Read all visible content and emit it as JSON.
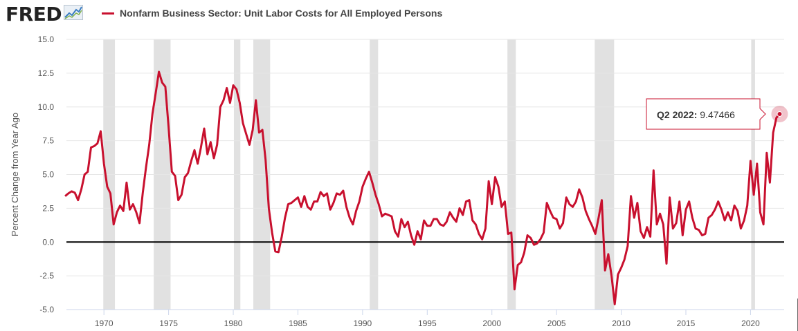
{
  "logo": {
    "text": "FRED",
    "icon": "trend-chart-icon"
  },
  "colors": {
    "series": "#c8102e",
    "recession": "#e1e1e1",
    "zero_line": "#000000",
    "grid": "#e6e6e6",
    "text": "#555555"
  },
  "chart_data": {
    "type": "line",
    "title": "",
    "xlabel": "",
    "ylabel": "Percent Change from Year Ago",
    "xlim": [
      1967.1,
      2022.6
    ],
    "ylim": [
      -5.0,
      15.0
    ],
    "yticks": [
      -5.0,
      -2.5,
      0.0,
      2.5,
      5.0,
      7.5,
      10.0,
      12.5,
      15.0
    ],
    "ytick_labels": [
      "-5.0",
      "-2.5",
      "0.0",
      "2.5",
      "5.0",
      "7.5",
      "10.0",
      "12.5",
      "15.0"
    ],
    "xticks": [
      1970,
      1975,
      1980,
      1985,
      1990,
      1995,
      2000,
      2005,
      2010,
      2015,
      2020
    ],
    "xtick_labels": [
      "1970",
      "1975",
      "1980",
      "1985",
      "1990",
      "1995",
      "2000",
      "2005",
      "2010",
      "2015",
      "2020"
    ],
    "grid": "horizontal",
    "zero_line": true,
    "recessions": [
      [
        1969.95,
        1970.85
      ],
      [
        1973.85,
        1975.15
      ],
      [
        1980.05,
        1980.55
      ],
      [
        1981.55,
        1982.85
      ],
      [
        1990.55,
        1991.2
      ],
      [
        2001.2,
        2001.85
      ],
      [
        2007.95,
        2009.45
      ],
      [
        2020.05,
        2020.35
      ]
    ],
    "series": [
      {
        "name": "Nonfarm Business Sector: Unit Labor Costs for All Employed Persons",
        "points": [
          [
            1967.0,
            3.4
          ],
          [
            1967.25,
            3.6
          ],
          [
            1967.5,
            3.75
          ],
          [
            1967.75,
            3.65
          ],
          [
            1968.0,
            3.1
          ],
          [
            1968.25,
            3.9
          ],
          [
            1968.5,
            5.0
          ],
          [
            1968.75,
            5.2
          ],
          [
            1969.0,
            7.0
          ],
          [
            1969.25,
            7.1
          ],
          [
            1969.5,
            7.3
          ],
          [
            1969.75,
            8.2
          ],
          [
            1970.0,
            5.8
          ],
          [
            1970.25,
            4.1
          ],
          [
            1970.5,
            3.6
          ],
          [
            1970.75,
            1.3
          ],
          [
            1971.0,
            2.2
          ],
          [
            1971.25,
            2.7
          ],
          [
            1971.5,
            2.3
          ],
          [
            1971.75,
            4.4
          ],
          [
            1972.0,
            2.4
          ],
          [
            1972.25,
            2.8
          ],
          [
            1972.5,
            2.2
          ],
          [
            1972.75,
            1.4
          ],
          [
            1973.0,
            3.6
          ],
          [
            1973.25,
            5.5
          ],
          [
            1973.5,
            7.2
          ],
          [
            1973.75,
            9.5
          ],
          [
            1974.0,
            11.0
          ],
          [
            1974.25,
            12.6
          ],
          [
            1974.5,
            11.8
          ],
          [
            1974.75,
            11.5
          ],
          [
            1975.0,
            8.5
          ],
          [
            1975.25,
            5.2
          ],
          [
            1975.5,
            4.9
          ],
          [
            1975.75,
            3.1
          ],
          [
            1976.0,
            3.5
          ],
          [
            1976.25,
            4.8
          ],
          [
            1976.5,
            5.1
          ],
          [
            1976.75,
            6.0
          ],
          [
            1977.0,
            6.8
          ],
          [
            1977.25,
            5.8
          ],
          [
            1977.5,
            7.0
          ],
          [
            1977.75,
            8.4
          ],
          [
            1978.0,
            6.5
          ],
          [
            1978.25,
            7.4
          ],
          [
            1978.5,
            6.2
          ],
          [
            1978.75,
            7.2
          ],
          [
            1979.0,
            10.0
          ],
          [
            1979.25,
            10.5
          ],
          [
            1979.5,
            11.4
          ],
          [
            1979.75,
            10.3
          ],
          [
            1980.0,
            11.6
          ],
          [
            1980.25,
            11.3
          ],
          [
            1980.5,
            10.3
          ],
          [
            1980.75,
            8.8
          ],
          [
            1981.0,
            8.0
          ],
          [
            1981.25,
            7.2
          ],
          [
            1981.5,
            8.3
          ],
          [
            1981.75,
            10.5
          ],
          [
            1982.0,
            8.1
          ],
          [
            1982.25,
            8.3
          ],
          [
            1982.5,
            6.1
          ],
          [
            1982.75,
            2.5
          ],
          [
            1983.0,
            0.7
          ],
          [
            1983.25,
            -0.7
          ],
          [
            1983.5,
            -0.75
          ],
          [
            1983.75,
            0.4
          ],
          [
            1984.0,
            1.8
          ],
          [
            1984.25,
            2.8
          ],
          [
            1984.5,
            2.9
          ],
          [
            1984.75,
            3.1
          ],
          [
            1985.0,
            3.3
          ],
          [
            1985.25,
            2.6
          ],
          [
            1985.5,
            3.4
          ],
          [
            1985.75,
            2.6
          ],
          [
            1986.0,
            2.4
          ],
          [
            1986.25,
            3.0
          ],
          [
            1986.5,
            3.0
          ],
          [
            1986.75,
            3.7
          ],
          [
            1987.0,
            3.4
          ],
          [
            1987.25,
            3.6
          ],
          [
            1987.5,
            2.4
          ],
          [
            1987.75,
            2.9
          ],
          [
            1988.0,
            3.6
          ],
          [
            1988.25,
            3.5
          ],
          [
            1988.5,
            3.8
          ],
          [
            1988.75,
            2.6
          ],
          [
            1989.0,
            1.8
          ],
          [
            1989.25,
            1.3
          ],
          [
            1989.5,
            2.3
          ],
          [
            1989.75,
            3.0
          ],
          [
            1990.0,
            4.1
          ],
          [
            1990.25,
            4.7
          ],
          [
            1990.5,
            5.2
          ],
          [
            1990.75,
            4.4
          ],
          [
            1991.0,
            3.5
          ],
          [
            1991.25,
            2.8
          ],
          [
            1991.5,
            1.9
          ],
          [
            1991.75,
            2.1
          ],
          [
            1992.0,
            2.0
          ],
          [
            1992.25,
            1.9
          ],
          [
            1992.5,
            0.8
          ],
          [
            1992.75,
            0.4
          ],
          [
            1993.0,
            1.7
          ],
          [
            1993.25,
            1.1
          ],
          [
            1993.5,
            1.5
          ],
          [
            1993.75,
            0.5
          ],
          [
            1994.0,
            -0.2
          ],
          [
            1994.25,
            0.8
          ],
          [
            1994.5,
            0.2
          ],
          [
            1994.75,
            1.6
          ],
          [
            1995.0,
            1.2
          ],
          [
            1995.25,
            1.2
          ],
          [
            1995.5,
            1.7
          ],
          [
            1995.75,
            1.7
          ],
          [
            1996.0,
            1.3
          ],
          [
            1996.25,
            1.2
          ],
          [
            1996.5,
            1.5
          ],
          [
            1996.75,
            2.2
          ],
          [
            1997.0,
            1.8
          ],
          [
            1997.25,
            1.5
          ],
          [
            1997.5,
            2.5
          ],
          [
            1997.75,
            2.0
          ],
          [
            1998.0,
            3.0
          ],
          [
            1998.25,
            3.1
          ],
          [
            1998.5,
            1.6
          ],
          [
            1998.75,
            1.3
          ],
          [
            1999.0,
            0.6
          ],
          [
            1999.25,
            0.2
          ],
          [
            1999.5,
            1.0
          ],
          [
            1999.75,
            4.5
          ],
          [
            2000.0,
            2.8
          ],
          [
            2000.25,
            4.8
          ],
          [
            2000.5,
            4.1
          ],
          [
            2000.75,
            2.6
          ],
          [
            2001.0,
            3.0
          ],
          [
            2001.25,
            0.6
          ],
          [
            2001.5,
            0.7
          ],
          [
            2001.75,
            -3.5
          ],
          [
            2002.0,
            -1.7
          ],
          [
            2002.25,
            -1.5
          ],
          [
            2002.5,
            -0.8
          ],
          [
            2002.75,
            0.5
          ],
          [
            2003.0,
            0.3
          ],
          [
            2003.25,
            -0.2
          ],
          [
            2003.5,
            -0.1
          ],
          [
            2003.75,
            0.2
          ],
          [
            2004.0,
            0.7
          ],
          [
            2004.25,
            2.9
          ],
          [
            2004.5,
            2.3
          ],
          [
            2004.75,
            1.8
          ],
          [
            2005.0,
            1.7
          ],
          [
            2005.25,
            1.0
          ],
          [
            2005.5,
            1.4
          ],
          [
            2005.75,
            3.3
          ],
          [
            2006.0,
            2.8
          ],
          [
            2006.25,
            2.6
          ],
          [
            2006.5,
            3.0
          ],
          [
            2006.75,
            3.9
          ],
          [
            2007.0,
            3.3
          ],
          [
            2007.25,
            2.3
          ],
          [
            2007.5,
            1.7
          ],
          [
            2007.75,
            1.2
          ],
          [
            2008.0,
            0.6
          ],
          [
            2008.25,
            1.8
          ],
          [
            2008.5,
            3.1
          ],
          [
            2008.75,
            -2.1
          ],
          [
            2009.0,
            -0.9
          ],
          [
            2009.25,
            -2.5
          ],
          [
            2009.5,
            -4.6
          ],
          [
            2009.75,
            -2.4
          ],
          [
            2010.0,
            -1.9
          ],
          [
            2010.25,
            -1.3
          ],
          [
            2010.5,
            -0.3
          ],
          [
            2010.75,
            3.4
          ],
          [
            2011.0,
            1.8
          ],
          [
            2011.25,
            2.9
          ],
          [
            2011.5,
            0.8
          ],
          [
            2011.75,
            0.3
          ],
          [
            2012.0,
            1.1
          ],
          [
            2012.25,
            0.4
          ],
          [
            2012.5,
            5.3
          ],
          [
            2012.75,
            1.3
          ],
          [
            2013.0,
            2.1
          ],
          [
            2013.25,
            1.3
          ],
          [
            2013.5,
            -1.6
          ],
          [
            2013.75,
            3.3
          ],
          [
            2014.0,
            1.0
          ],
          [
            2014.25,
            1.4
          ],
          [
            2014.5,
            3.0
          ],
          [
            2014.75,
            0.5
          ],
          [
            2015.0,
            2.4
          ],
          [
            2015.25,
            3.0
          ],
          [
            2015.5,
            1.8
          ],
          [
            2015.75,
            1.0
          ],
          [
            2016.0,
            0.9
          ],
          [
            2016.25,
            0.5
          ],
          [
            2016.5,
            0.6
          ],
          [
            2016.75,
            1.8
          ],
          [
            2017.0,
            2.0
          ],
          [
            2017.25,
            2.4
          ],
          [
            2017.5,
            3.0
          ],
          [
            2017.75,
            2.4
          ],
          [
            2018.0,
            1.6
          ],
          [
            2018.25,
            2.2
          ],
          [
            2018.5,
            1.6
          ],
          [
            2018.75,
            2.7
          ],
          [
            2019.0,
            2.3
          ],
          [
            2019.25,
            1.0
          ],
          [
            2019.5,
            1.6
          ],
          [
            2019.75,
            2.7
          ],
          [
            2020.0,
            6.0
          ],
          [
            2020.25,
            3.5
          ],
          [
            2020.5,
            5.8
          ],
          [
            2020.75,
            2.2
          ],
          [
            2021.0,
            1.3
          ],
          [
            2021.25,
            6.6
          ],
          [
            2021.5,
            4.4
          ],
          [
            2021.75,
            8.1
          ],
          [
            2022.0,
            9.2
          ],
          [
            2022.25,
            9.47466
          ]
        ]
      }
    ],
    "tooltip": {
      "label": "Q2 2022:",
      "value": "9.47466",
      "x": 2022.25,
      "y": 9.47466
    }
  }
}
